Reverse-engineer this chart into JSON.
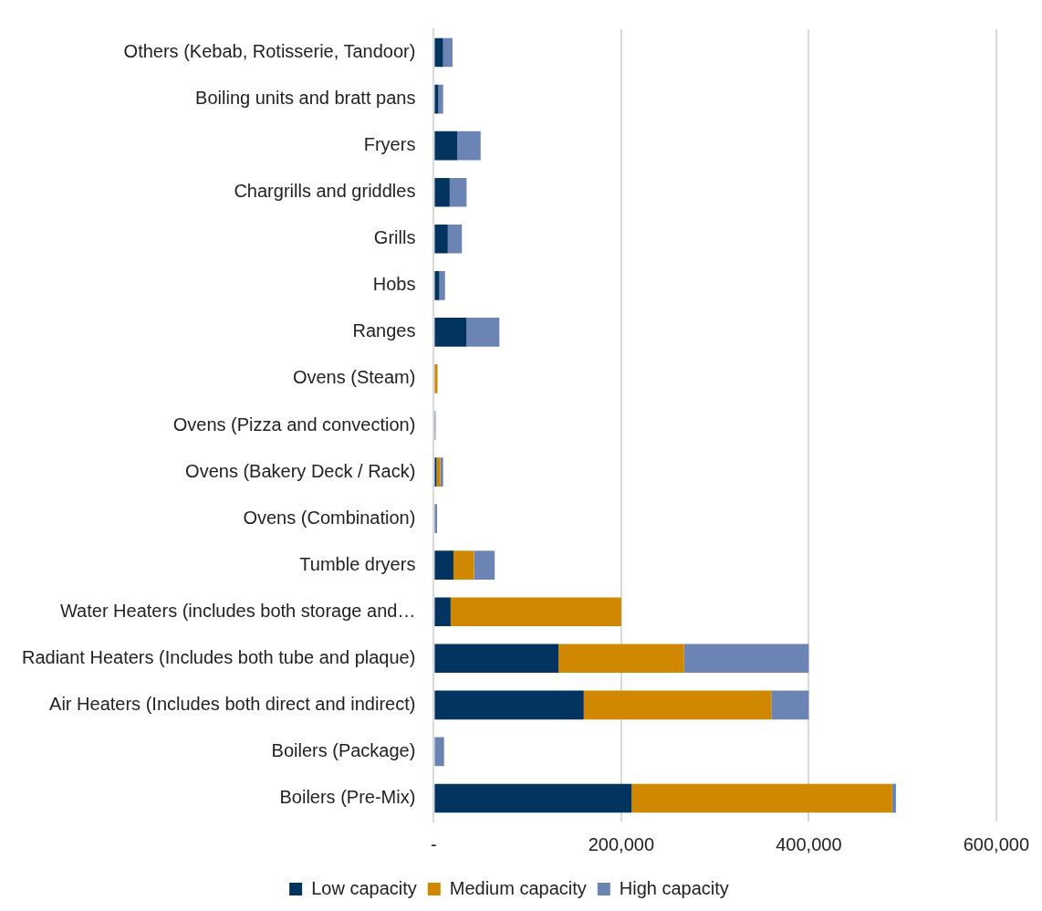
{
  "chart_data": {
    "type": "bar",
    "orientation": "horizontal",
    "stacked": true,
    "categories": [
      "Others (Kebab, Rotisserie, Tandoor)",
      "Boiling units and bratt pans",
      "Fryers",
      "Chargrills and griddles",
      "Grills",
      "Hobs",
      "Ranges",
      "Ovens (Steam)",
      "Ovens (Pizza and convection)",
      "Ovens (Bakery Deck / Rack)",
      "Ovens (Combination)",
      "Tumble dryers",
      "Water Heaters (includes both storage and…",
      "Radiant Heaters (Includes both tube and plaque)",
      "Air Heaters (Includes both direct and indirect)",
      "Boilers (Package)",
      "Boilers (Pre-Mix)"
    ],
    "series": [
      {
        "name": "Low capacity",
        "color": "#03345f",
        "values": [
          10000,
          5000,
          25000,
          17000,
          15000,
          6000,
          35000,
          null,
          0,
          3000,
          1000,
          21000,
          18000,
          133000,
          160000,
          0,
          211000
        ]
      },
      {
        "name": "Medium capacity",
        "color": "#d08800",
        "values": [
          0,
          0,
          0,
          0,
          0,
          0,
          0,
          4000,
          0,
          4000,
          0,
          22000,
          182000,
          134000,
          200000,
          0,
          278000
        ]
      },
      {
        "name": "High capacity",
        "color": "#6b84b4",
        "values": [
          10000,
          5000,
          25000,
          18000,
          15000,
          6000,
          35000,
          0,
          2000,
          3000,
          2500,
          22000,
          0,
          133000,
          40000,
          11000,
          4000
        ]
      }
    ],
    "xlim": [
      0,
      600000
    ],
    "xticks": [
      {
        "value": 0,
        "label": "-"
      },
      {
        "value": 200000,
        "label": "200,000"
      },
      {
        "value": 400000,
        "label": "400,000"
      },
      {
        "value": 600000,
        "label": "600,000"
      }
    ],
    "grid": "x",
    "legend": "bottom"
  }
}
